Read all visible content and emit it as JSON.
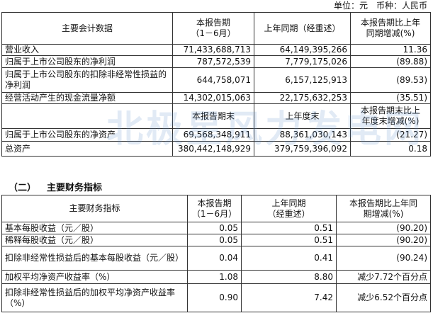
{
  "unit_note": "单位：元　币种：人民币",
  "watermark": "北极星风力发电网",
  "table1": {
    "header": [
      "主要会计数据",
      "本报告期\n（1－6月）",
      "上年同期（经重述）",
      "本报告期比上年\n同期增减(%)"
    ],
    "rows": [
      [
        "营业收入",
        "71,433,688,713",
        "64,149,395,266",
        "11.36"
      ],
      [
        "归属于上市公司股东的净利润",
        "787,572,539",
        "7,779,175,026",
        "(89.88)"
      ],
      [
        "归属于上市公司股东的扣除非经常性损益的净利润",
        "644,758,071",
        "6,157,125,913",
        "(89.53)"
      ],
      [
        "经营活动产生的现金流量净额",
        "14,302,015,063",
        "22,175,632,253",
        "(35.51)"
      ]
    ],
    "subheader": [
      "本报告期末",
      "上年度末",
      "本报告期末比上\n年度末增减(%)"
    ],
    "rows2": [
      [
        "归属于上市公司股东的净资产",
        "69,568,348,911",
        "88,361,030,143",
        "(21.27)"
      ],
      [
        "总资产",
        "380,442,148,929",
        "379,759,396,092",
        "0.18"
      ]
    ]
  },
  "section": {
    "number": "（二）",
    "title": "主要财务指标"
  },
  "table2": {
    "header": [
      "主要财务指标",
      "本报告期\n（1－6月）",
      "上年同期\n（经重述）",
      "本报告期比上年同\n期增减(%)"
    ],
    "rows": [
      [
        "基本每股收益（元／股）",
        "0.05",
        "0.51",
        "(90.20)"
      ],
      [
        "稀释每股收益（元／股）",
        "0.05",
        "0.51",
        "(90.20)"
      ],
      [
        "扣除非经常性损益后的基本每股收益（元／股）",
        "0.04",
        "0.41",
        "(90.24)"
      ],
      [
        "加权平均净资产收益率（%）",
        "1.08",
        "8.80",
        "减少7.72个百分点"
      ],
      [
        "扣除非经常性损益后的加权平均净资产收益率（%）",
        "0.90",
        "7.42",
        "减少6.52个百分点"
      ]
    ]
  }
}
